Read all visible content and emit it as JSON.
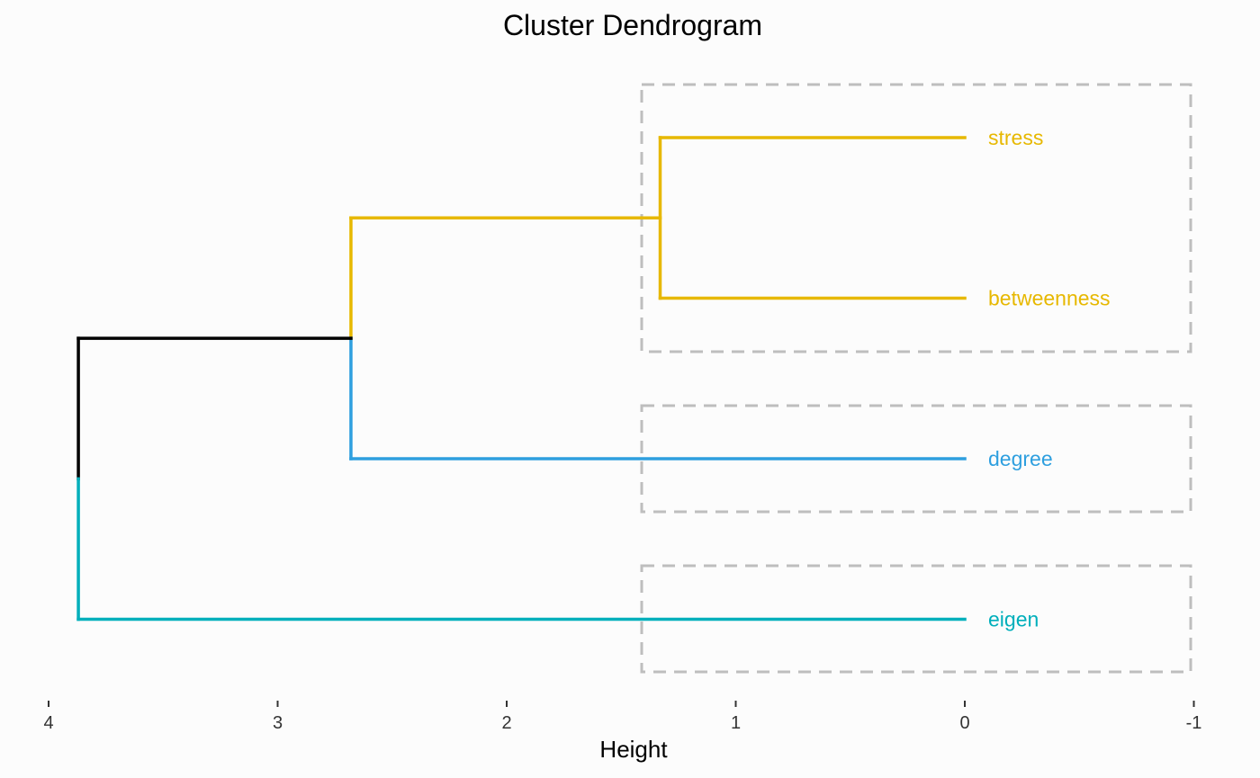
{
  "chart_data": {
    "type": "dendrogram",
    "title": "Cluster Dendrogram",
    "xlabel": "Height",
    "ylabel": "",
    "orientation": "horizontal",
    "xlim": [
      4,
      -1
    ],
    "x_ticks": [
      "4",
      "3",
      "2",
      "1",
      "0",
      "-1"
    ],
    "grid": false,
    "leaves": [
      {
        "label": "stress",
        "color": "#E7B800"
      },
      {
        "label": "betweenness",
        "color": "#E7B800"
      },
      {
        "label": "degree",
        "color": "#2E9FDF"
      },
      {
        "label": "eigen",
        "color": "#00AFBB"
      }
    ],
    "merges": [
      {
        "members": [
          "stress",
          "betweenness"
        ],
        "height": 1.33,
        "color": "#E7B800"
      },
      {
        "members": [
          "stress",
          "betweenness",
          "degree"
        ],
        "height": 2.68,
        "color_upper": "#E7B800",
        "color_lower": "#2E9FDF"
      },
      {
        "members": [
          "stress",
          "betweenness",
          "degree",
          "eigen"
        ],
        "height": 3.87,
        "color_upper": "#000000",
        "color_lower": "#00AFBB"
      }
    ],
    "cluster_boxes": [
      {
        "leaves": [
          "stress",
          "betweenness"
        ]
      },
      {
        "leaves": [
          "degree"
        ]
      },
      {
        "leaves": [
          "eigen"
        ]
      }
    ],
    "box_color": "#BEBEBE"
  }
}
